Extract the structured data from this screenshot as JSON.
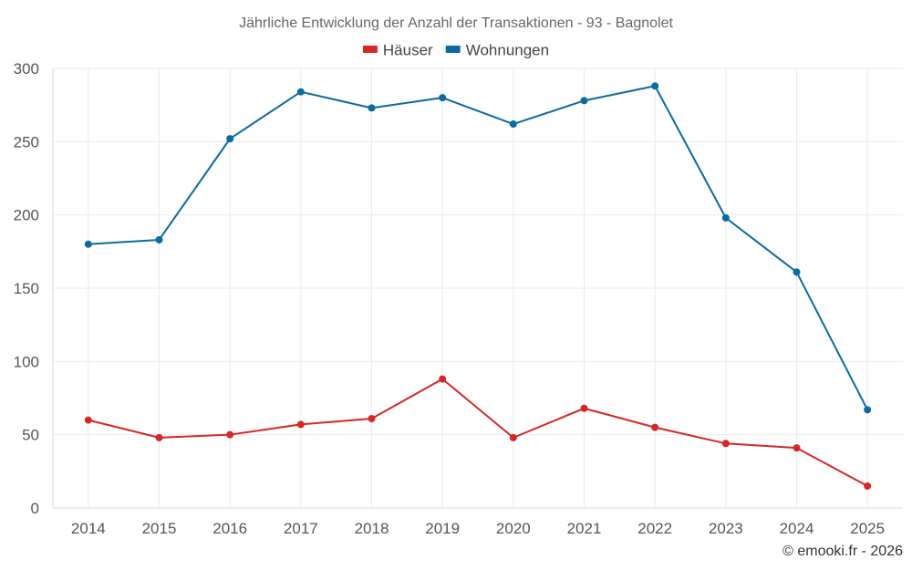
{
  "chart_data": {
    "type": "line",
    "title": "Jährliche Entwicklung der Anzahl der Transaktionen - 93 - Bagnolet",
    "xlabel": "",
    "ylabel": "",
    "categories": [
      "2014",
      "2015",
      "2016",
      "2017",
      "2018",
      "2019",
      "2020",
      "2021",
      "2022",
      "2023",
      "2024",
      "2025"
    ],
    "ylim": [
      0,
      300
    ],
    "yticks": [
      "0",
      "50",
      "100",
      "150",
      "200",
      "250",
      "300"
    ],
    "grid": true,
    "legend_position": "top-center",
    "series": [
      {
        "name": "Häuser",
        "color": "#d62728",
        "values": [
          60,
          48,
          50,
          57,
          61,
          88,
          48,
          68,
          55,
          44,
          41,
          15
        ]
      },
      {
        "name": "Wohnungen",
        "color": "#0a6aa1",
        "values": [
          180,
          183,
          252,
          284,
          273,
          280,
          262,
          278,
          288,
          198,
          161,
          67
        ]
      }
    ],
    "credit": "© emooki.fr - 2026"
  }
}
